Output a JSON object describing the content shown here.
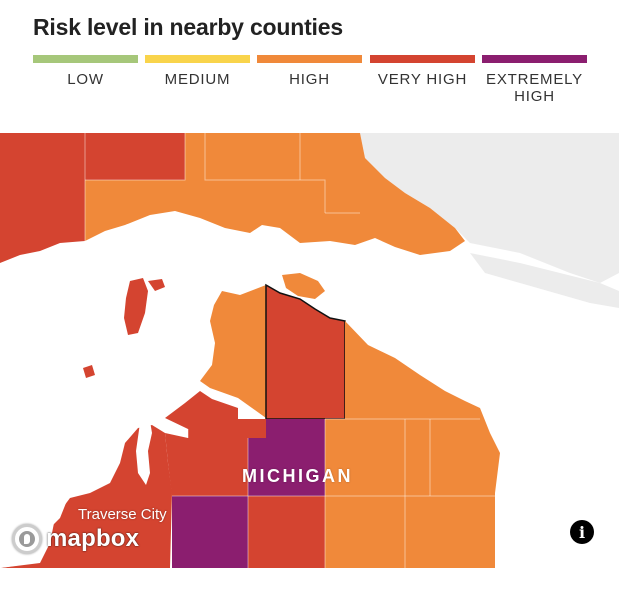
{
  "title": "Risk level in nearby counties",
  "legend": [
    {
      "label": "LOW",
      "color": "#a6c77a"
    },
    {
      "label": "MEDIUM",
      "color": "#f9d44b"
    },
    {
      "label": "HIGH",
      "color": "#f0893a"
    },
    {
      "label": "VERY HIGH",
      "color": "#d44430"
    },
    {
      "label": "EXTREMELY HIGH",
      "color": "#8b1e6f"
    }
  ],
  "map": {
    "state_label": "MICHIGAN",
    "city_label": "Traverse City",
    "provider_logo": "mapbox",
    "info_icon": "info-icon",
    "water_color": "#ffffff",
    "canada_land_color": "#ececec"
  }
}
